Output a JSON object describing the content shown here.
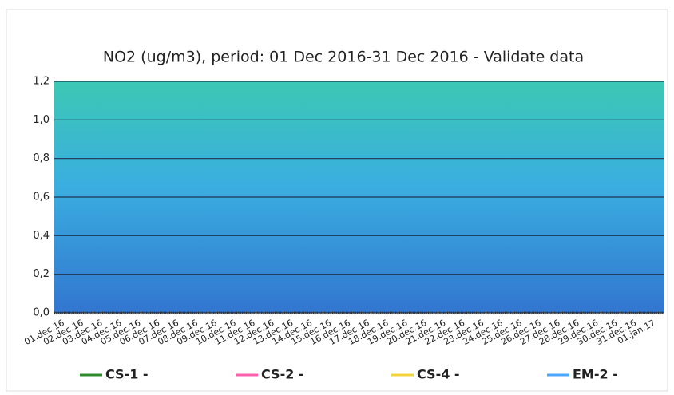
{
  "chart_data": {
    "type": "line",
    "title": "NO2 (ug/m3), period: 01 Dec 2016-31 Dec 2016 - Validate data",
    "categories": [
      "01.dec.16",
      "02.dec.16",
      "03.dec.16",
      "04.dec.16",
      "05.dec.16",
      "06.dec.16",
      "07.dec.16",
      "08.dec.16",
      "09.dec.16",
      "10.dec.16",
      "11.dec.16",
      "12.dec.16",
      "13.dec.16",
      "14.dec.16",
      "15.dec.16",
      "16.dec.16",
      "17.dec.16",
      "18.dec.16",
      "19.dec.16",
      "20.dec.16",
      "21.dec.16",
      "22.dec.16",
      "23.dec.16",
      "24.dec.16",
      "25.dec.16",
      "26.dec.16",
      "27.dec.16",
      "28.dec.16",
      "29.dec.16",
      "30.dec.16",
      "31.dec.16",
      "01.jan.17"
    ],
    "series": [
      {
        "name": "CS-1 -",
        "color": "#2e8b2e",
        "values": [
          null,
          null,
          null,
          null,
          null,
          null,
          null,
          null,
          null,
          null,
          null,
          null,
          null,
          null,
          null,
          null,
          null,
          null,
          null,
          null,
          null,
          null,
          null,
          null,
          null,
          null,
          null,
          null,
          null,
          null,
          null,
          null
        ]
      },
      {
        "name": "CS-2 -",
        "color": "#ff5fae",
        "values": [
          null,
          null,
          null,
          null,
          null,
          null,
          null,
          null,
          null,
          null,
          null,
          null,
          null,
          null,
          null,
          null,
          null,
          null,
          null,
          null,
          null,
          null,
          null,
          null,
          null,
          null,
          null,
          null,
          null,
          null,
          null,
          null
        ]
      },
      {
        "name": "CS-4 -",
        "color": "#f2d33a",
        "values": [
          null,
          null,
          null,
          null,
          null,
          null,
          null,
          null,
          null,
          null,
          null,
          null,
          null,
          null,
          null,
          null,
          null,
          null,
          null,
          null,
          null,
          null,
          null,
          null,
          null,
          null,
          null,
          null,
          null,
          null,
          null,
          null
        ]
      },
      {
        "name": "EM-2 -",
        "color": "#4da6ff",
        "values": [
          null,
          null,
          null,
          null,
          null,
          null,
          null,
          null,
          null,
          null,
          null,
          null,
          null,
          null,
          null,
          null,
          null,
          null,
          null,
          null,
          null,
          null,
          null,
          null,
          null,
          null,
          null,
          null,
          null,
          null,
          null,
          null
        ]
      }
    ],
    "ylim": [
      0,
      1.2
    ],
    "yticks": [
      {
        "value": 0,
        "label": "0,0"
      },
      {
        "value": 0.2,
        "label": "0,2"
      },
      {
        "value": 0.4,
        "label": "0,4"
      },
      {
        "value": 0.6,
        "label": "0,6"
      },
      {
        "value": 0.8,
        "label": "0,8"
      },
      {
        "value": 1.0,
        "label": "1,0"
      },
      {
        "value": 1.2,
        "label": "1,2"
      }
    ],
    "grid": true
  }
}
